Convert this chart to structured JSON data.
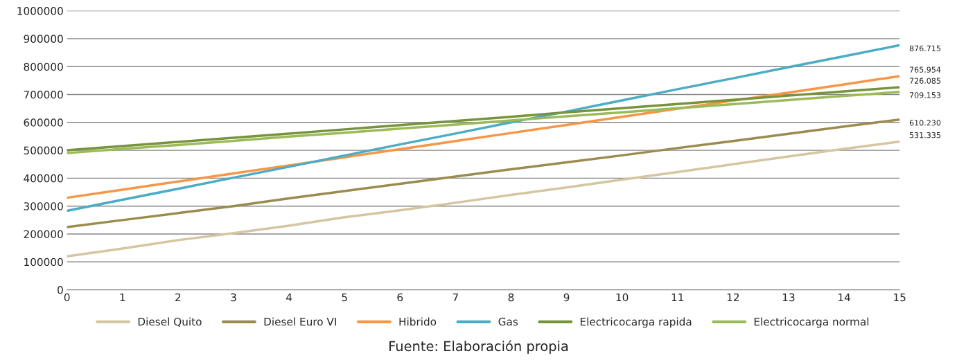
{
  "chart_data": {
    "type": "line",
    "x": [
      0,
      1,
      2,
      3,
      4,
      5,
      6,
      7,
      8,
      9,
      10,
      11,
      12,
      13,
      14,
      15
    ],
    "xlim": [
      0,
      15
    ],
    "xticks": [
      0,
      1,
      2,
      3,
      4,
      5,
      6,
      7,
      8,
      9,
      10,
      11,
      12,
      13,
      14,
      15
    ],
    "ylim": [
      0,
      1000000
    ],
    "yticks": [
      0,
      100000,
      200000,
      300000,
      400000,
      500000,
      600000,
      700000,
      800000,
      900000,
      1000000
    ],
    "grid": "y",
    "legend": "bottom",
    "marker": "none",
    "line_style": "solid",
    "annotations": [
      "Fuente: Elaboración propia"
    ],
    "series": [
      {
        "name": "Diesel Quito",
        "color": "#d4c6a0",
        "values": [
          120000,
          148000,
          178000,
          203000,
          230000,
          260000,
          285000,
          312000,
          340000,
          367000,
          395000,
          422000,
          450000,
          478000,
          505000,
          531335
        ],
        "value_labels": [
          null,
          null,
          null,
          null,
          null,
          null,
          null,
          null,
          null,
          null,
          null,
          null,
          null,
          null,
          null,
          "531.335"
        ]
      },
      {
        "name": "Diesel Euro VI",
        "color": "#9b8b4e",
        "values": [
          225000,
          250000,
          275000,
          300000,
          328000,
          354000,
          380000,
          406000,
          432000,
          457000,
          482000,
          508000,
          533000,
          559000,
          585000,
          610230
        ],
        "value_labels": [
          null,
          null,
          null,
          null,
          null,
          null,
          null,
          null,
          null,
          null,
          null,
          null,
          null,
          null,
          null,
          "610.230"
        ]
      },
      {
        "name": "Hibrido",
        "color": "#f79646",
        "values": [
          330000,
          359000,
          388000,
          417000,
          446000,
          475000,
          504000,
          533000,
          562000,
          591000,
          620000,
          649000,
          678000,
          707000,
          736000,
          765954
        ],
        "value_labels": [
          null,
          null,
          null,
          null,
          null,
          null,
          null,
          null,
          null,
          null,
          null,
          null,
          null,
          null,
          null,
          "765.954"
        ]
      },
      {
        "name": "Gas",
        "color": "#4bacc6",
        "values": [
          283000,
          323000,
          362000,
          402000,
          441000,
          481000,
          521000,
          560000,
          600000,
          639000,
          679000,
          719000,
          758000,
          798000,
          837000,
          876715
        ],
        "value_labels": [
          null,
          null,
          null,
          null,
          null,
          null,
          null,
          null,
          null,
          null,
          null,
          null,
          null,
          null,
          null,
          "876.715"
        ]
      },
      {
        "name": "Electricocarga rapida",
        "color": "#77933c",
        "values": [
          500000,
          515000,
          530000,
          545000,
          560000,
          575000,
          590000,
          605000,
          620000,
          636000,
          651000,
          666000,
          681000,
          696000,
          711000,
          726085
        ],
        "value_labels": [
          null,
          null,
          null,
          null,
          null,
          null,
          null,
          null,
          null,
          null,
          null,
          null,
          null,
          null,
          null,
          "726.085"
        ]
      },
      {
        "name": "Electricocarga normal",
        "color": "#9bbb59",
        "values": [
          490000,
          505000,
          519000,
          534000,
          549000,
          563000,
          578000,
          592000,
          607000,
          622000,
          636000,
          651000,
          665000,
          680000,
          695000,
          709153
        ],
        "value_labels": [
          null,
          null,
          null,
          null,
          null,
          null,
          null,
          null,
          null,
          null,
          null,
          null,
          null,
          null,
          null,
          "709.153"
        ]
      }
    ]
  }
}
